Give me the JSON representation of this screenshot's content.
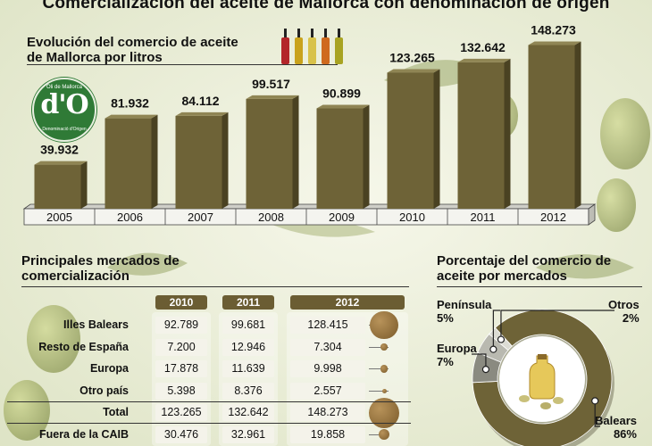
{
  "title": "Comercialización del aceite de Mallorca con denominación de origen",
  "logo": {
    "top": "Oli de Mallorca",
    "main": "d'O",
    "bottom": "Denominació d'Origen"
  },
  "chart_data": [
    {
      "type": "bar",
      "title": "Evolución del comercio de aceite de Mallorca por litros",
      "categories": [
        "2005",
        "2006",
        "2007",
        "2008",
        "2009",
        "2010",
        "2011",
        "2012"
      ],
      "values": [
        39932,
        81932,
        84112,
        99517,
        90899,
        123265,
        132642,
        148273
      ],
      "value_labels": [
        "39.932",
        "81.932",
        "84.112",
        "99.517",
        "90.899",
        "123.265",
        "132.642",
        "148.273"
      ],
      "ylim": [
        0,
        160000
      ],
      "grid": false,
      "legend": "none",
      "colors": {
        "bar": "#6e6337",
        "bar_side": "#4a4222",
        "bar_top": "#8f8554"
      }
    },
    {
      "type": "table",
      "title": "Principales mercados de comercialización",
      "columns": [
        "2010",
        "2011",
        "2012"
      ],
      "rows": [
        {
          "label": "Illes Balears",
          "values": [
            "92.789",
            "99.681",
            "128.415"
          ],
          "v2012": 128415
        },
        {
          "label": "Resto de España",
          "values": [
            "7.200",
            "12.946",
            "7.304"
          ],
          "v2012": 7304
        },
        {
          "label": "Europa",
          "values": [
            "17.878",
            "11.639",
            "9.998"
          ],
          "v2012": 9998
        },
        {
          "label": "Otro país",
          "values": [
            "5.398",
            "8.376",
            "2.557"
          ],
          "v2012": 2557
        },
        {
          "label": "Total",
          "values": [
            "123.265",
            "132.642",
            "148.273"
          ],
          "v2012": 148273
        },
        {
          "label": "Fuera de la CAIB",
          "values": [
            "30.476",
            "32.961",
            "19.858"
          ],
          "v2012": 19858
        }
      ]
    },
    {
      "type": "pie",
      "title": "Porcentaje del comercio de aceite por mercados",
      "slices": [
        {
          "label": "Balears",
          "value": 86,
          "pct": "86%",
          "color": "#6e6337"
        },
        {
          "label": "Europa",
          "value": 7,
          "pct": "7%",
          "color": "#8a8a80"
        },
        {
          "label": "Península",
          "value": 5,
          "pct": "5%",
          "color": "#b9b9b0"
        },
        {
          "label": "Otros",
          "value": 2,
          "pct": "2%",
          "color": "#dcdcd4"
        }
      ]
    }
  ]
}
